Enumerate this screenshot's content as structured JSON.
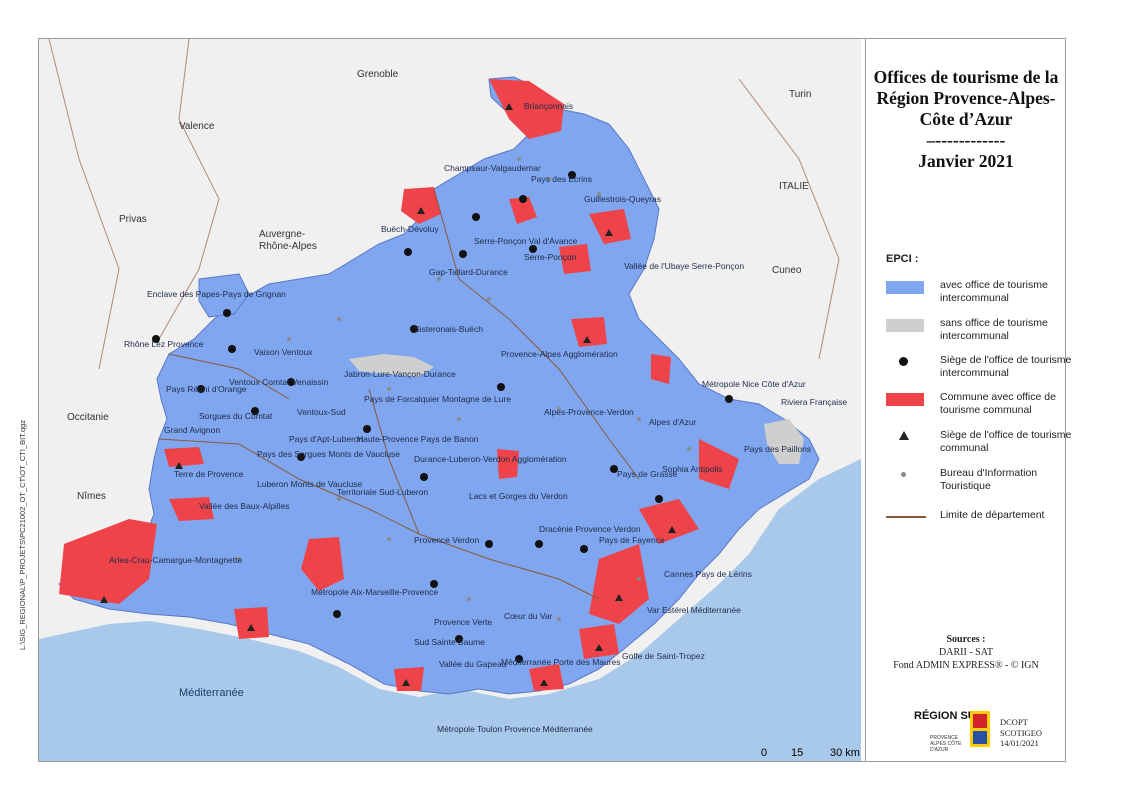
{
  "map_title": {
    "line1": "Offices de tourisme de la",
    "line2": "Région Provence-Alpes-",
    "line3": "Côte d’Azur",
    "separator": "–------------",
    "date": "Janvier 2021"
  },
  "legend": {
    "heading": "EPCI :",
    "items": [
      {
        "label": "avec office de tourisme intercommunal",
        "color": "#7fa6ee"
      },
      {
        "label": "sans office de tourisme intercommunal",
        "color": "#cfcfcf"
      },
      {
        "label": "Siège de l'office de tourisme intercommunal",
        "color": "#111111"
      },
      {
        "label": "Commune avec office de tourisme communal",
        "color": "#ee4449"
      },
      {
        "label": "Siège de l'office de tourisme communal",
        "color": "#222222"
      },
      {
        "label": "Bureau d'Information Touristique",
        "color": "#8a8a8a"
      },
      {
        "label": "Limite de département",
        "color": "#8a5b3b"
      }
    ]
  },
  "sources": {
    "heading": "Sources :",
    "line1": "DARII - SAT",
    "line2": "Fond ADMIN EXPRESS® - © IGN"
  },
  "logo": {
    "name": "RÉGION SUD",
    "sub": "PROVENCE ALPES CÔTE D'AZUR"
  },
  "credit": {
    "line1": "DCOPT",
    "line2": "SCOTIGEO",
    "line3": "14/01/2021"
  },
  "file_path": "L:\\SIG_REGIONAL\\P_PROJETS\\PC21002_OT_CT\\OT_CTI_BIT.qgz",
  "scale_bar": {
    "t0": "0",
    "t1": "15",
    "t2": "30 km"
  },
  "places": {
    "grenoble": "Grenoble",
    "valence": "Valence",
    "privas": "Privas",
    "auvergne": "Auvergne-",
    "auvergne2": "Rhône-Alpes",
    "turin": "Turin",
    "italie": "ITALIE",
    "cuneo": "Cuneo",
    "occitanie": "Occitanie",
    "nimes": "Nîmes",
    "mediterranee": "Méditerranée"
  },
  "epci_labels": [
    "Briançonnais",
    "Pays des Ecrins",
    "Champsaur-Valgaudemar",
    "Guillestrois-Queyras",
    "Buëch-Dévoluy",
    "Serre-Ponçon Val d'Avance",
    "Serre-Ponçon",
    "Vallée de l'Ubaye Serre-Ponçon",
    "Gap-Tallard-Durance",
    "Enclave des Papes-Pays de Grignan",
    "Sisteronais-Buëch",
    "Rhône Lez Provence",
    "Vaison Ventoux",
    "Jabron-Lure-Vançon-Durance",
    "Provence-Alpes Agglomération",
    "Ventoux Comtat Venaissin",
    "Pays Réuni d'Orange",
    "Sorgues du Comtat",
    "Ventoux-Sud",
    "Pays de Forcalquier Montagne de Lure",
    "Alpes-Provence-Verdon",
    "Alpes d'Azur",
    "Métropole Nice Côte d'Azur",
    "Riviera Française",
    "Grand Avignon",
    "Pays d'Apt-Luberon",
    "Haute-Provence Pays de Banon",
    "Pays des Paillons",
    "Pays des Sorgues Monts de Vaucluse",
    "Terre de Provence",
    "Luberon Monts de Vaucluse",
    "Durance-Luberon-Verdon Agglomération",
    "Pays de Grasse",
    "Sophia Antipolis",
    "Vallée des Baux-Alpilles",
    "Territoriale Sud-Luberon",
    "Lacs et Gorges du Verdon",
    "Provence Verdon",
    "Dracénie Provence Verdon",
    "Pays de Fayence",
    "Cannes Pays de Lérins",
    "Arles-Crau-Camargue-Montagnette",
    "Métropole Aix-Marseille-Provence",
    "Var Estérel Méditerranée",
    "Provence Verte",
    "Cœur du Var",
    "Sud Sainte Baume",
    "Méditerranée Porte des Maures",
    "Golfe de Saint-Tropez",
    "Vallée du Gapeau",
    "Métropole Toulon Provence Méditerranée"
  ]
}
